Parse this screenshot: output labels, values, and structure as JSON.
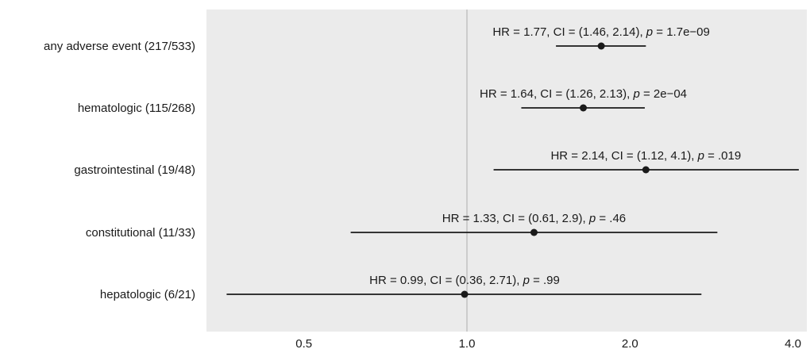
{
  "chart_data": {
    "type": "forest",
    "title": "",
    "xlabel": "",
    "ylabel": "",
    "x_scale": "log",
    "x_ticks": [
      0.5,
      1.0,
      2.0,
      4.0
    ],
    "x_tick_labels": [
      "0.5",
      "1.0",
      "2.0",
      "4.0"
    ],
    "reference_line": 1.0,
    "grid": false,
    "colors": {
      "panel_background": "#ebebeb",
      "reference_line": "#c4c4c4",
      "marks": "#1a1a1a"
    },
    "rows": [
      {
        "category": "any adverse event (217/533)",
        "hr": 1.77,
        "ci_low": 1.46,
        "ci_high": 2.14,
        "ann_prefix": "HR = 1.77, CI = (1.46, 2.14), ",
        "ann_p": "p",
        "ann_suffix": " = 1.7e−09"
      },
      {
        "category": "hematologic (115/268)",
        "hr": 1.64,
        "ci_low": 1.26,
        "ci_high": 2.13,
        "ann_prefix": "HR = 1.64, CI = (1.26, 2.13), ",
        "ann_p": "p",
        "ann_suffix": " = 2e−04"
      },
      {
        "category": "gastrointestinal (19/48)",
        "hr": 2.14,
        "ci_low": 1.12,
        "ci_high": 4.1,
        "ann_prefix": "HR = 2.14, CI = (1.12, 4.1), ",
        "ann_p": "p",
        "ann_suffix": " = .019"
      },
      {
        "category": "constitutional (11/33)",
        "hr": 1.33,
        "ci_low": 0.61,
        "ci_high": 2.9,
        "ann_prefix": "HR = 1.33, CI = (0.61, 2.9), ",
        "ann_p": "p",
        "ann_suffix": " = .46"
      },
      {
        "category": "hepatologic (6/21)",
        "hr": 0.99,
        "ci_low": 0.36,
        "ci_high": 2.71,
        "ann_prefix": "HR = 0.99, CI = (0.36, 2.71), ",
        "ann_p": "p",
        "ann_suffix": " = .99"
      }
    ]
  }
}
